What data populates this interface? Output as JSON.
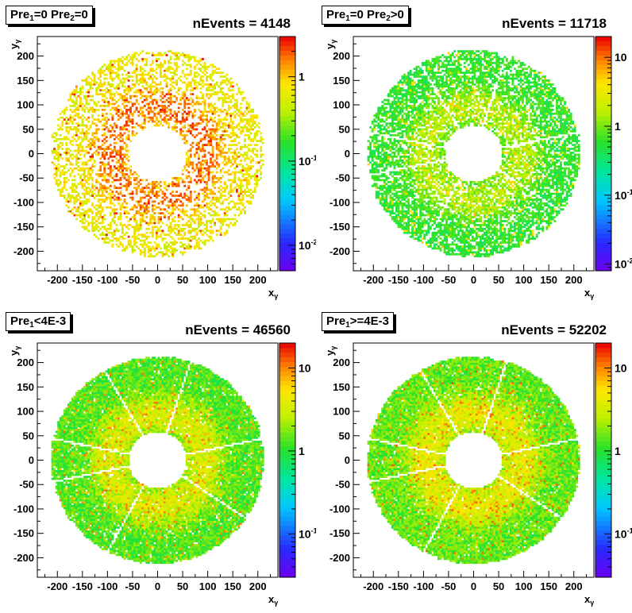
{
  "chart_data": [
    {
      "type": "heatmap",
      "title": {
        "a": "Pre",
        "as": "1",
        "b": "=0 Pre",
        "bs": "2",
        "c": "=0"
      },
      "nevents": "nEvents = 4148",
      "xlabel": "x",
      "xsub": "γ",
      "ylabel": "y",
      "ysub": "γ",
      "xlim": [
        -240,
        240
      ],
      "ylim": [
        -240,
        240
      ],
      "xticks": [
        "-200",
        "-150",
        "-100",
        "-50",
        "0",
        "50",
        "100",
        "150",
        "200"
      ],
      "yticks": [
        "-200",
        "-150",
        "-100",
        "-50",
        "0",
        "50",
        "100",
        "150",
        "200"
      ],
      "z_scale": "log",
      "zlim": [
        0.005,
        3
      ],
      "z_labels": [
        {
          "v": 1,
          "t": "1"
        },
        {
          "v": 0.1,
          "t": "10",
          "e": "-1"
        },
        {
          "v": 0.01,
          "t": "10",
          "e": "-2"
        }
      ],
      "ring": {
        "r_inner": 58,
        "r_outer": 210,
        "typical": 0.8,
        "hot": 2.2,
        "fill": 0.45,
        "gaps": false
      },
      "seed": 11
    },
    {
      "type": "heatmap",
      "title": {
        "a": "Pre",
        "as": "1",
        "b": "=0 Pre",
        "bs": "2",
        "c": ">0"
      },
      "nevents": "nEvents = 11718",
      "xlabel": "x",
      "xsub": "γ",
      "ylabel": "y",
      "ysub": "γ",
      "xlim": [
        -240,
        240
      ],
      "ylim": [
        -240,
        240
      ],
      "xticks": [
        "-200",
        "-150",
        "-100",
        "-50",
        "0",
        "50",
        "100",
        "150",
        "200"
      ],
      "yticks": [
        "-200",
        "-150",
        "-100",
        "-50",
        "0",
        "50",
        "100",
        "150",
        "200"
      ],
      "z_scale": "log",
      "zlim": [
        0.008,
        20
      ],
      "z_labels": [
        {
          "v": 10,
          "t": "10"
        },
        {
          "v": 1,
          "t": "1"
        },
        {
          "v": 0.1,
          "t": "10",
          "e": "-1"
        },
        {
          "v": 0.01,
          "t": "10",
          "e": "-2"
        }
      ],
      "ring": {
        "r_inner": 58,
        "r_outer": 210,
        "typical": 0.7,
        "hot": 4.5,
        "fill": 0.72,
        "gaps": true
      },
      "seed": 23
    },
    {
      "type": "heatmap",
      "title": {
        "a": "Pre",
        "as": "1",
        "b": "<4E-3",
        "bs": "",
        "c": ""
      },
      "nevents": "nEvents = 46560",
      "xlabel": "x",
      "xsub": "γ",
      "ylabel": "y",
      "ysub": "γ",
      "xlim": [
        -240,
        240
      ],
      "ylim": [
        -240,
        240
      ],
      "xticks": [
        "-200",
        "-150",
        "-100",
        "-50",
        "0",
        "50",
        "100",
        "150",
        "200"
      ],
      "yticks": [
        "-200",
        "-150",
        "-100",
        "-50",
        "0",
        "50",
        "100",
        "150",
        "200"
      ],
      "z_scale": "log",
      "zlim": [
        0.03,
        20
      ],
      "z_labels": [
        {
          "v": 10,
          "t": "10"
        },
        {
          "v": 1,
          "t": "1"
        },
        {
          "v": 0.1,
          "t": "10",
          "e": "-1"
        }
      ],
      "ring": {
        "r_inner": 58,
        "r_outer": 210,
        "typical": 1.6,
        "hot": 9,
        "fill": 0.96,
        "gaps": true
      },
      "seed": 37
    },
    {
      "type": "heatmap",
      "title": {
        "a": "Pre",
        "as": "1",
        "b": ">=4E-3",
        "bs": "",
        "c": ""
      },
      "nevents": "nEvents = 52202",
      "xlabel": "x",
      "xsub": "γ",
      "ylabel": "y",
      "ysub": "γ",
      "xlim": [
        -240,
        240
      ],
      "ylim": [
        -240,
        240
      ],
      "xticks": [
        "-200",
        "-150",
        "-100",
        "-50",
        "0",
        "50",
        "100",
        "150",
        "200"
      ],
      "yticks": [
        "-200",
        "-150",
        "-100",
        "-50",
        "0",
        "50",
        "100",
        "150",
        "200"
      ],
      "z_scale": "log",
      "zlim": [
        0.03,
        20
      ],
      "z_labels": [
        {
          "v": 10,
          "t": "10"
        },
        {
          "v": 1,
          "t": "1"
        },
        {
          "v": 0.1,
          "t": "10",
          "e": "-1"
        }
      ],
      "ring": {
        "r_inner": 58,
        "r_outer": 210,
        "typical": 1.8,
        "hot": 10,
        "fill": 0.97,
        "gaps": true
      },
      "seed": 53
    }
  ]
}
